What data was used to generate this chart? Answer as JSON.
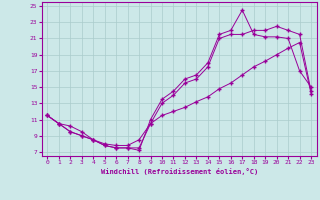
{
  "xlabel": "Windchill (Refroidissement éolien,°C)",
  "background_color": "#cce8e8",
  "grid_color": "#aacccc",
  "line_color": "#990099",
  "xlim": [
    -0.5,
    23.5
  ],
  "ylim": [
    6.5,
    25.5
  ],
  "xticks": [
    0,
    1,
    2,
    3,
    4,
    5,
    6,
    7,
    8,
    9,
    10,
    11,
    12,
    13,
    14,
    15,
    16,
    17,
    18,
    19,
    20,
    21,
    22,
    23
  ],
  "yticks": [
    7,
    9,
    11,
    13,
    15,
    17,
    19,
    21,
    23,
    25
  ],
  "line1_x": [
    0,
    1,
    2,
    3,
    4,
    5,
    6,
    7,
    8,
    9,
    10,
    11,
    12,
    13,
    14,
    15,
    16,
    17,
    18,
    19,
    20,
    21,
    22,
    23
  ],
  "line1_y": [
    11.5,
    10.5,
    10.2,
    9.5,
    8.5,
    7.8,
    7.5,
    7.5,
    7.2,
    11.0,
    13.5,
    14.5,
    16.0,
    16.5,
    18.0,
    21.5,
    22.0,
    24.5,
    21.5,
    21.2,
    21.2,
    21.0,
    17.0,
    15.0
  ],
  "line2_x": [
    0,
    1,
    2,
    3,
    4,
    5,
    6,
    7,
    8,
    9,
    10,
    11,
    12,
    13,
    14,
    15,
    16,
    17,
    18,
    19,
    20,
    21,
    22,
    23
  ],
  "line2_y": [
    11.5,
    10.5,
    9.5,
    9.0,
    8.5,
    7.8,
    7.5,
    7.5,
    7.5,
    10.5,
    13.0,
    14.0,
    15.5,
    16.0,
    17.5,
    21.0,
    21.5,
    21.5,
    22.0,
    22.0,
    22.5,
    22.0,
    21.5,
    14.5
  ],
  "line3_x": [
    0,
    1,
    2,
    3,
    4,
    5,
    6,
    7,
    8,
    9,
    10,
    11,
    12,
    13,
    14,
    15,
    16,
    17,
    18,
    19,
    20,
    21,
    22,
    23
  ],
  "line3_y": [
    11.5,
    10.5,
    9.5,
    9.0,
    8.5,
    8.0,
    7.8,
    7.8,
    8.5,
    10.5,
    11.5,
    12.0,
    12.5,
    13.2,
    13.8,
    14.8,
    15.5,
    16.5,
    17.5,
    18.2,
    19.0,
    19.8,
    20.5,
    14.2
  ]
}
